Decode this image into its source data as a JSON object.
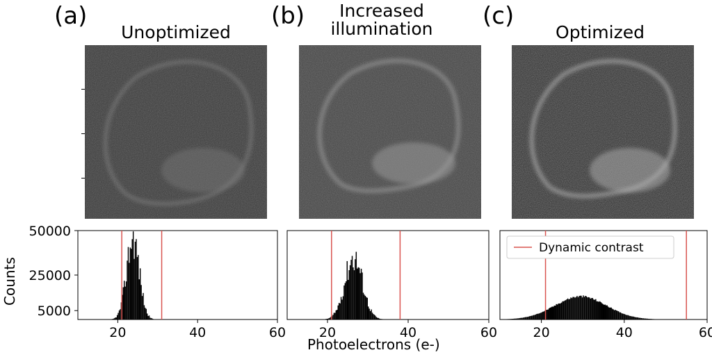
{
  "panels": [
    {
      "letter": "(a)",
      "title": "Unoptimized"
    },
    {
      "letter": "(b)",
      "title": "Increased illumination"
    },
    {
      "letter": "(c)",
      "title": "Optimized"
    }
  ],
  "chart_data": {
    "type": "bar",
    "title": "",
    "xlabel": "Photoelectrons (e-)",
    "ylabel": "Counts",
    "xlim": [
      10,
      60
    ],
    "ylim": [
      0,
      50000
    ],
    "xticks": [
      "20",
      "40",
      "60"
    ],
    "yticks": [
      "5000",
      "25000",
      "50000"
    ],
    "histograms": [
      {
        "panel": "(a)",
        "mean": 23.8,
        "std": 1.6,
        "peak": 47000,
        "contrast_lines": [
          21,
          31
        ]
      },
      {
        "panel": "(b)",
        "mean": 26.5,
        "std": 2.2,
        "peak": 36000,
        "contrast_lines": [
          21,
          38
        ]
      },
      {
        "panel": "(c)",
        "mean": 29.5,
        "std": 6.2,
        "peak": 13000,
        "contrast_lines": [
          21,
          55
        ]
      }
    ],
    "legend": {
      "label": "Dynamic contrast",
      "color": "#d9534f",
      "position": "top-left of panel (c)"
    }
  }
}
